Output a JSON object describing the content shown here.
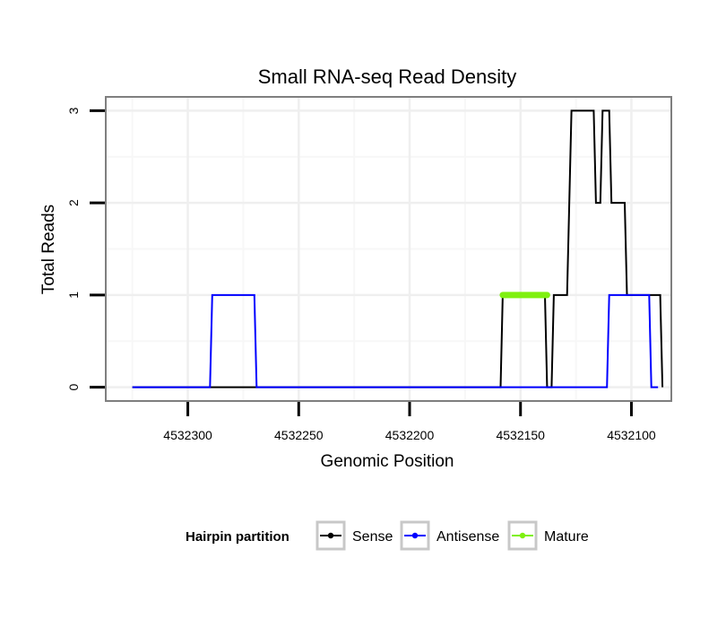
{
  "chart_data": {
    "type": "line",
    "title": "Small RNA-seq Read Density",
    "xlabel": "Genomic Position",
    "ylabel": "Total Reads",
    "xlim": [
      4532337,
      4532082
    ],
    "ylim": [
      -0.15,
      3.15
    ],
    "x_reversed": true,
    "xticks": [
      4532300,
      4532250,
      4532200,
      4532150,
      4532100
    ],
    "xtick_labels": [
      "4532300",
      "4532250",
      "4532200",
      "4532150",
      "4532100"
    ],
    "yticks": [
      0,
      1,
      2,
      3
    ],
    "ytick_labels": [
      "0",
      "1",
      "2",
      "3"
    ],
    "grid": true,
    "series": [
      {
        "name": "Sense",
        "color": "#000000",
        "points": [
          [
            4532325,
            0
          ],
          [
            4532159,
            0
          ],
          [
            4532158,
            1
          ],
          [
            4532139,
            1
          ],
          [
            4532138,
            0
          ],
          [
            4532136,
            0
          ],
          [
            4532135,
            1
          ],
          [
            4532129,
            1
          ],
          [
            4532127,
            3
          ],
          [
            4532117,
            3
          ],
          [
            4532116,
            2
          ],
          [
            4532114,
            2
          ],
          [
            4532113,
            3
          ],
          [
            4532110,
            3
          ],
          [
            4532109,
            2
          ],
          [
            4532103,
            2
          ],
          [
            4532102,
            1
          ],
          [
            4532087,
            1
          ],
          [
            4532086,
            0
          ]
        ]
      },
      {
        "name": "Antisense",
        "color": "#0000ff",
        "points": [
          [
            4532325,
            0
          ],
          [
            4532290,
            0
          ],
          [
            4532289,
            1
          ],
          [
            4532270,
            1
          ],
          [
            4532269,
            0
          ],
          [
            4532111,
            0
          ],
          [
            4532110,
            1
          ],
          [
            4532092,
            1
          ],
          [
            4532091,
            0
          ],
          [
            4532088,
            0
          ]
        ]
      },
      {
        "name": "Mature",
        "color": "#7ff00f",
        "points": [
          [
            4532158,
            1
          ],
          [
            4532138,
            1
          ]
        ]
      }
    ],
    "legend": {
      "title": "Hairpin partition",
      "position": "bottom",
      "entries": [
        "Sense",
        "Antisense",
        "Mature"
      ]
    }
  }
}
